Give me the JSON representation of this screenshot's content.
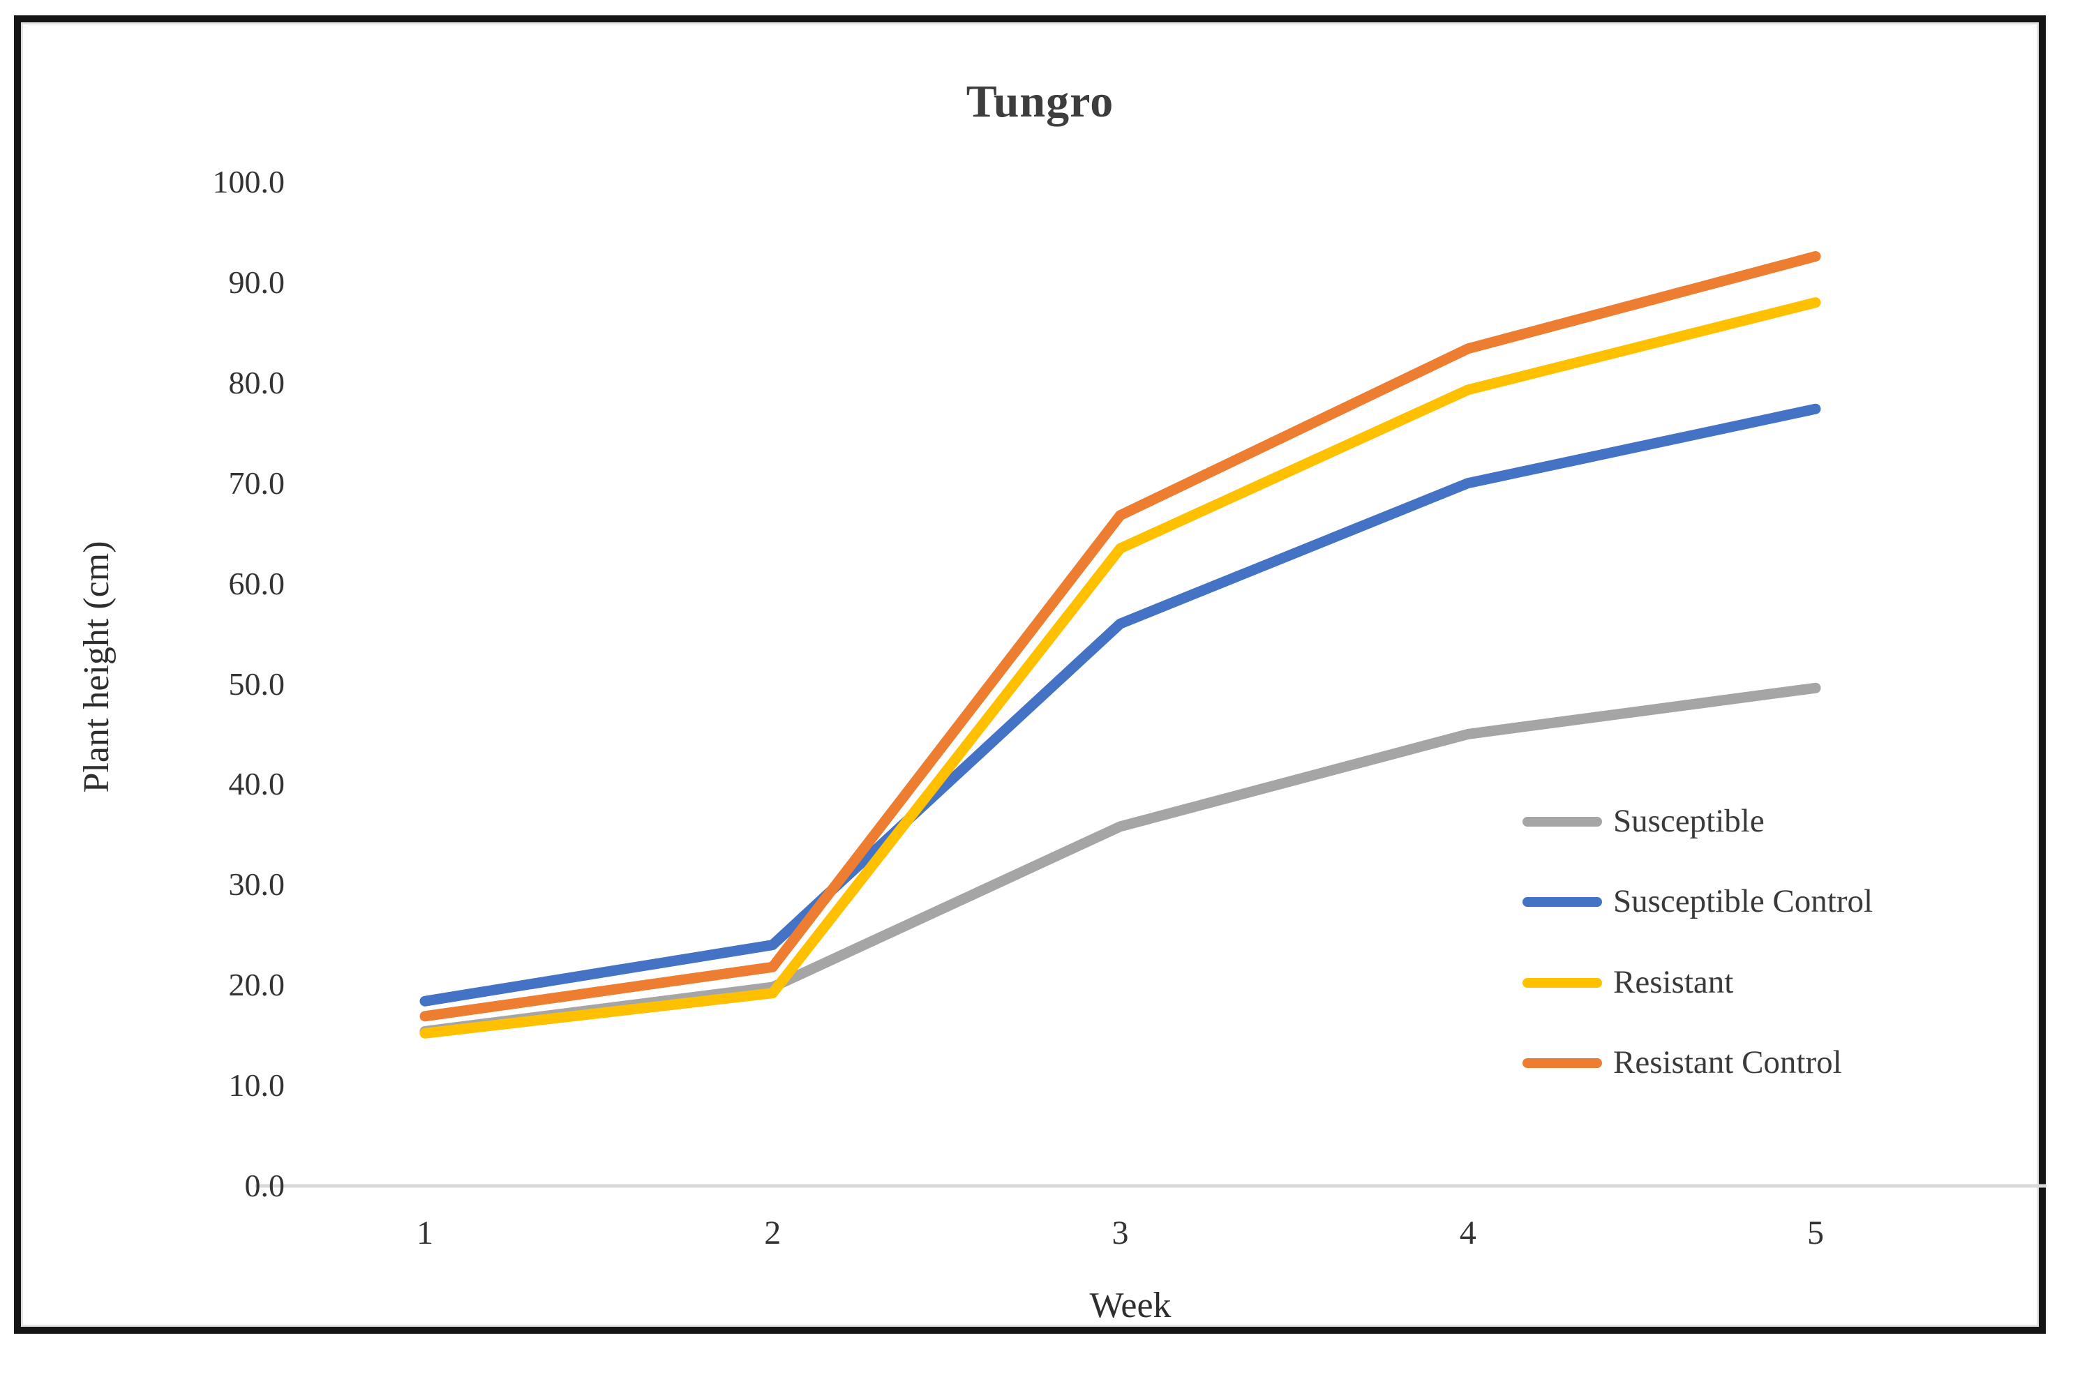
{
  "chart_data": {
    "type": "line",
    "title": "Tungro",
    "xlabel": "Week",
    "ylabel": "Plant height (cm)",
    "categories": [
      "1",
      "2",
      "3",
      "4",
      "5"
    ],
    "ylim": [
      0,
      100
    ],
    "y_tick_labels": [
      "0.0",
      "10.0",
      "20.0",
      "30.0",
      "40.0",
      "50.0",
      "60.0",
      "70.0",
      "80.0",
      "90.0",
      "100.0"
    ],
    "grid": false,
    "legend_position": "middle-right",
    "axis_line_color": "#d9d9d9",
    "series": [
      {
        "name": "Susceptible",
        "color": "#A5A5A5",
        "values": [
          15.4,
          19.8,
          35.8,
          45.0,
          49.6
        ]
      },
      {
        "name": "Susceptible Control",
        "color": "#4472C4",
        "values": [
          18.4,
          24.0,
          56.0,
          70.0,
          77.4
        ]
      },
      {
        "name": "Resistant",
        "color": "#FFC000",
        "values": [
          15.2,
          19.2,
          63.5,
          79.3,
          88.0
        ]
      },
      {
        "name": "Resistant Control",
        "color": "#ED7D31",
        "values": [
          16.9,
          21.8,
          66.8,
          83.4,
          92.6
        ]
      }
    ]
  }
}
